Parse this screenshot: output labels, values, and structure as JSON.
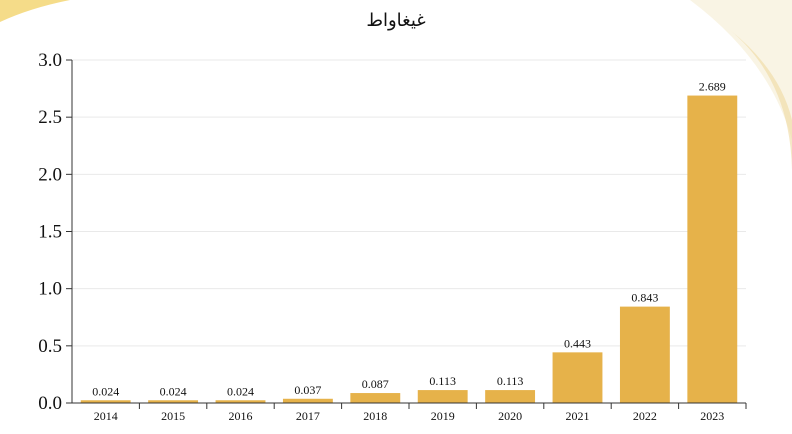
{
  "colors": {
    "bar": "#E6B24A",
    "axis": "#333333",
    "grid": "#E9E9E9",
    "accent": "#F2C94C"
  },
  "chart_data": {
    "type": "bar",
    "title": "غيغاواط",
    "xlabel": "",
    "ylabel": "",
    "categories": [
      "2014",
      "2015",
      "2016",
      "2017",
      "2018",
      "2019",
      "2020",
      "2021",
      "2022",
      "2023"
    ],
    "values": [
      0.024,
      0.024,
      0.024,
      0.037,
      0.087,
      0.113,
      0.113,
      0.443,
      0.843,
      2.689
    ],
    "data_labels": [
      "0.024",
      "0.024",
      "0.024",
      "0.037",
      "0.087",
      "0.113",
      "0.113",
      "0.443",
      "0.843",
      "2.689"
    ],
    "ylim": [
      0,
      3.0
    ],
    "yticks": [
      "0.0",
      "0.5",
      "1.0",
      "1.5",
      "2.0",
      "2.5",
      "3.0"
    ],
    "ytick_values": [
      0,
      0.5,
      1.0,
      1.5,
      2.0,
      2.5,
      3.0
    ],
    "grid": true,
    "legend": "none"
  }
}
